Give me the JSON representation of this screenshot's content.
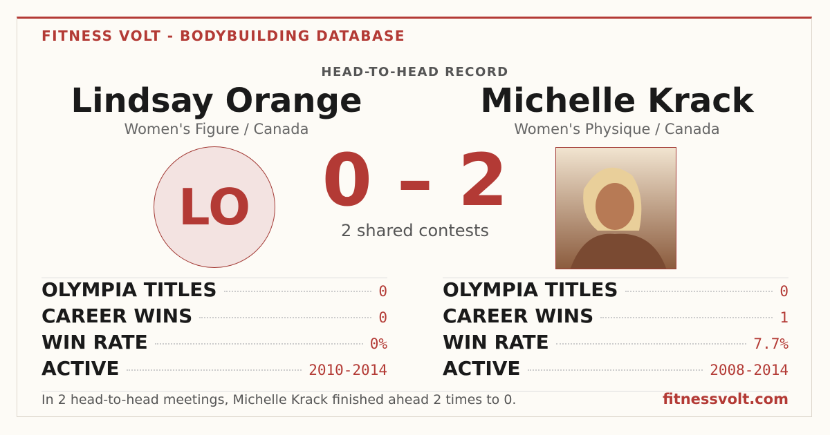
{
  "header": {
    "brand": "FITNESS VOLT - BODYBUILDING DATABASE",
    "title": "HEAD-TO-HEAD RECORD"
  },
  "left": {
    "name": "Lindsay Orange",
    "subtitle": "Women's Figure / Canada",
    "initials": "LO",
    "stats": [
      {
        "label": "OLYMPIA TITLES",
        "value": "0"
      },
      {
        "label": "CAREER WINS",
        "value": "0"
      },
      {
        "label": "WIN RATE",
        "value": "0%"
      },
      {
        "label": "ACTIVE",
        "value": "2010-2014"
      }
    ]
  },
  "right": {
    "name": "Michelle Krack",
    "subtitle": "Women's Physique / Canada",
    "stats": [
      {
        "label": "OLYMPIA TITLES",
        "value": "0"
      },
      {
        "label": "CAREER WINS",
        "value": "1"
      },
      {
        "label": "WIN RATE",
        "value": "7.7%"
      },
      {
        "label": "ACTIVE",
        "value": "2008-2014"
      }
    ]
  },
  "score": {
    "left": "0",
    "separator": "–",
    "right": "2",
    "caption": "2 shared contests"
  },
  "footer": {
    "text": "In 2 head-to-head meetings, Michelle Krack finished ahead 2 times to 0.",
    "site": "fitnessvolt.com"
  }
}
